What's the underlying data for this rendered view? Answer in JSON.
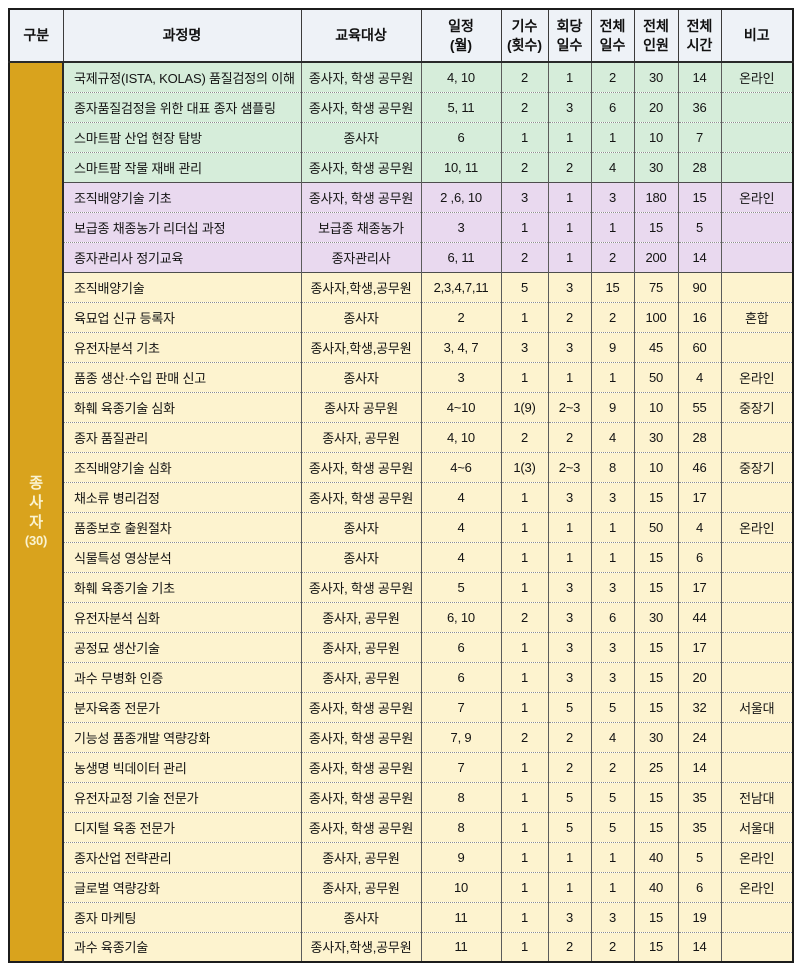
{
  "colors": {
    "header": "#eef2f7",
    "green": "#d6edda",
    "purple": "#e9d9ef",
    "yellow": "#fdf3cf",
    "gold": "#d9a31d",
    "page_background": "#ffffff",
    "border_dark": "#1c1c1c",
    "category_text": "#faf3d0"
  },
  "category": {
    "label": "종사자",
    "count": "(30)"
  },
  "table": {
    "columns": [
      {
        "id": "gubun",
        "label": "구분"
      },
      {
        "id": "name",
        "label": "과정명"
      },
      {
        "id": "target",
        "label": "교육대상"
      },
      {
        "id": "schedule",
        "label": "일정\n(월)"
      },
      {
        "id": "sessions",
        "label": "기수\n(횟수)"
      },
      {
        "id": "days_per",
        "label": "회당\n일수"
      },
      {
        "id": "days",
        "label": "전체\n일수"
      },
      {
        "id": "people",
        "label": "전체\n인원"
      },
      {
        "id": "hours",
        "label": "전체\n시간"
      },
      {
        "id": "note",
        "label": "비고"
      }
    ],
    "rows": [
      {
        "group": "green",
        "name": "국제규정(ISTA, KOLAS) 품질검정의 이해",
        "target": "종사자, 학생 공무원",
        "schedule": "4, 10",
        "sessions": "2",
        "days_per_session": "1",
        "total_days": "2",
        "total_people": "30",
        "total_hours": "14",
        "note": "온라인"
      },
      {
        "group": "green",
        "name": "종자품질검정을 위한 대표 종자 샘플링",
        "target": "종사자, 학생 공무원",
        "schedule": "5, 11",
        "sessions": "2",
        "days_per_session": "3",
        "total_days": "6",
        "total_people": "20",
        "total_hours": "36",
        "note": ""
      },
      {
        "group": "green",
        "name": "스마트팜 산업 현장 탐방",
        "target": "종사자",
        "schedule": "6",
        "sessions": "1",
        "days_per_session": "1",
        "total_days": "1",
        "total_people": "10",
        "total_hours": "7",
        "note": ""
      },
      {
        "group": "green",
        "name": "스마트팜 작물 재배 관리",
        "target": "종사자, 학생 공무원",
        "schedule": "10, 11",
        "sessions": "2",
        "days_per_session": "2",
        "total_days": "4",
        "total_people": "30",
        "total_hours": "28",
        "note": ""
      },
      {
        "group": "purple",
        "name": "조직배양기술 기초",
        "target": "종사자, 학생 공무원",
        "schedule": "2 ,6, 10",
        "sessions": "3",
        "days_per_session": "1",
        "total_days": "3",
        "total_people": "180",
        "total_hours": "15",
        "note": "온라인"
      },
      {
        "group": "purple",
        "name": "보급종 채종농가 리더십 과정",
        "target": "보급종 채종농가",
        "schedule": "3",
        "sessions": "1",
        "days_per_session": "1",
        "total_days": "1",
        "total_people": "15",
        "total_hours": "5",
        "note": ""
      },
      {
        "group": "purple",
        "name": "종자관리사 정기교육",
        "target": "종자관리사",
        "schedule": "6, 11",
        "sessions": "2",
        "days_per_session": "1",
        "total_days": "2",
        "total_people": "200",
        "total_hours": "14",
        "note": ""
      },
      {
        "group": "yellow",
        "name": "조직배양기술",
        "target": "종사자,학생,공무원",
        "schedule": "2,3,4,7,11",
        "sessions": "5",
        "days_per_session": "3",
        "total_days": "15",
        "total_people": "75",
        "total_hours": "90",
        "note": ""
      },
      {
        "group": "yellow",
        "name": "육묘업 신규 등록자",
        "target": "종사자",
        "schedule": "2",
        "sessions": "1",
        "days_per_session": "2",
        "total_days": "2",
        "total_people": "100",
        "total_hours": "16",
        "note": "혼합"
      },
      {
        "group": "yellow",
        "name": "유전자분석 기초",
        "target": "종사자,학생,공무원",
        "schedule": "3, 4, 7",
        "sessions": "3",
        "days_per_session": "3",
        "total_days": "9",
        "total_people": "45",
        "total_hours": "60",
        "note": ""
      },
      {
        "group": "yellow",
        "name": "품종 생산·수입 판매 신고",
        "target": "종사자",
        "schedule": "3",
        "sessions": "1",
        "days_per_session": "1",
        "total_days": "1",
        "total_people": "50",
        "total_hours": "4",
        "note": "온라인"
      },
      {
        "group": "yellow",
        "name": "화훼 육종기술 심화",
        "target": "종사자 공무원",
        "schedule": "4~10",
        "sessions": "1(9)",
        "days_per_session": "2~3",
        "total_days": "9",
        "total_people": "10",
        "total_hours": "55",
        "note": "중장기"
      },
      {
        "group": "yellow",
        "name": "종자 품질관리",
        "target": "종사자, 공무원",
        "schedule": "4, 10",
        "sessions": "2",
        "days_per_session": "2",
        "total_days": "4",
        "total_people": "30",
        "total_hours": "28",
        "note": ""
      },
      {
        "group": "yellow",
        "name": "조직배양기술 심화",
        "target": "종사자, 학생 공무원",
        "schedule": "4~6",
        "sessions": "1(3)",
        "days_per_session": "2~3",
        "total_days": "8",
        "total_people": "10",
        "total_hours": "46",
        "note": "중장기"
      },
      {
        "group": "yellow",
        "name": "채소류 병리검정",
        "target": "종사자, 학생 공무원",
        "schedule": "4",
        "sessions": "1",
        "days_per_session": "3",
        "total_days": "3",
        "total_people": "15",
        "total_hours": "17",
        "note": ""
      },
      {
        "group": "yellow",
        "name": "품종보호 출원절차",
        "target": "종사자",
        "schedule": "4",
        "sessions": "1",
        "days_per_session": "1",
        "total_days": "1",
        "total_people": "50",
        "total_hours": "4",
        "note": "온라인"
      },
      {
        "group": "yellow",
        "name": "식물특성 영상분석",
        "target": "종사자",
        "schedule": "4",
        "sessions": "1",
        "days_per_session": "1",
        "total_days": "1",
        "total_people": "15",
        "total_hours": "6",
        "note": ""
      },
      {
        "group": "yellow",
        "name": "화훼 육종기술 기초",
        "target": "종사자, 학생 공무원",
        "schedule": "5",
        "sessions": "1",
        "days_per_session": "3",
        "total_days": "3",
        "total_people": "15",
        "total_hours": "17",
        "note": ""
      },
      {
        "group": "yellow",
        "name": "유전자분석 심화",
        "target": "종사자, 공무원",
        "schedule": "6, 10",
        "sessions": "2",
        "days_per_session": "3",
        "total_days": "6",
        "total_people": "30",
        "total_hours": "44",
        "note": ""
      },
      {
        "group": "yellow",
        "name": "공정묘 생산기술",
        "target": "종사자, 공무원",
        "schedule": "6",
        "sessions": "1",
        "days_per_session": "3",
        "total_days": "3",
        "total_people": "15",
        "total_hours": "17",
        "note": ""
      },
      {
        "group": "yellow",
        "name": "과수 무병화 인증",
        "target": "종사자, 공무원",
        "schedule": "6",
        "sessions": "1",
        "days_per_session": "3",
        "total_days": "3",
        "total_people": "15",
        "total_hours": "20",
        "note": ""
      },
      {
        "group": "yellow",
        "name": "분자육종 전문가",
        "target": "종사자, 학생 공무원",
        "schedule": "7",
        "sessions": "1",
        "days_per_session": "5",
        "total_days": "5",
        "total_people": "15",
        "total_hours": "32",
        "note": "서울대"
      },
      {
        "group": "yellow",
        "name": "기능성 품종개발 역량강화",
        "target": "종사자, 학생 공무원",
        "schedule": "7, 9",
        "sessions": "2",
        "days_per_session": "2",
        "total_days": "4",
        "total_people": "30",
        "total_hours": "24",
        "note": ""
      },
      {
        "group": "yellow",
        "name": "농생명 빅데이터 관리",
        "target": "종사자, 학생 공무원",
        "schedule": "7",
        "sessions": "1",
        "days_per_session": "2",
        "total_days": "2",
        "total_people": "25",
        "total_hours": "14",
        "note": ""
      },
      {
        "group": "yellow",
        "name": "유전자교정 기술 전문가",
        "target": "종사자, 학생 공무원",
        "schedule": "8",
        "sessions": "1",
        "days_per_session": "5",
        "total_days": "5",
        "total_people": "15",
        "total_hours": "35",
        "note": "전남대"
      },
      {
        "group": "yellow",
        "name": "디지털 육종 전문가",
        "target": "종사자, 학생 공무원",
        "schedule": "8",
        "sessions": "1",
        "days_per_session": "5",
        "total_days": "5",
        "total_people": "15",
        "total_hours": "35",
        "note": "서울대"
      },
      {
        "group": "yellow",
        "name": "종자산업 전략관리",
        "target": "종사자, 공무원",
        "schedule": "9",
        "sessions": "1",
        "days_per_session": "1",
        "total_days": "1",
        "total_people": "40",
        "total_hours": "5",
        "note": "온라인"
      },
      {
        "group": "yellow",
        "name": "글로벌 역량강화",
        "target": "종사자, 공무원",
        "schedule": "10",
        "sessions": "1",
        "days_per_session": "1",
        "total_days": "1",
        "total_people": "40",
        "total_hours": "6",
        "note": "온라인"
      },
      {
        "group": "yellow",
        "name": "종자 마케팅",
        "target": "종사자",
        "schedule": "11",
        "sessions": "1",
        "days_per_session": "3",
        "total_days": "3",
        "total_people": "15",
        "total_hours": "19",
        "note": ""
      },
      {
        "group": "yellow",
        "name": "과수 육종기술",
        "target": "종사자,학생,공무원",
        "schedule": "11",
        "sessions": "1",
        "days_per_session": "2",
        "total_days": "2",
        "total_people": "15",
        "total_hours": "14",
        "note": ""
      }
    ]
  }
}
